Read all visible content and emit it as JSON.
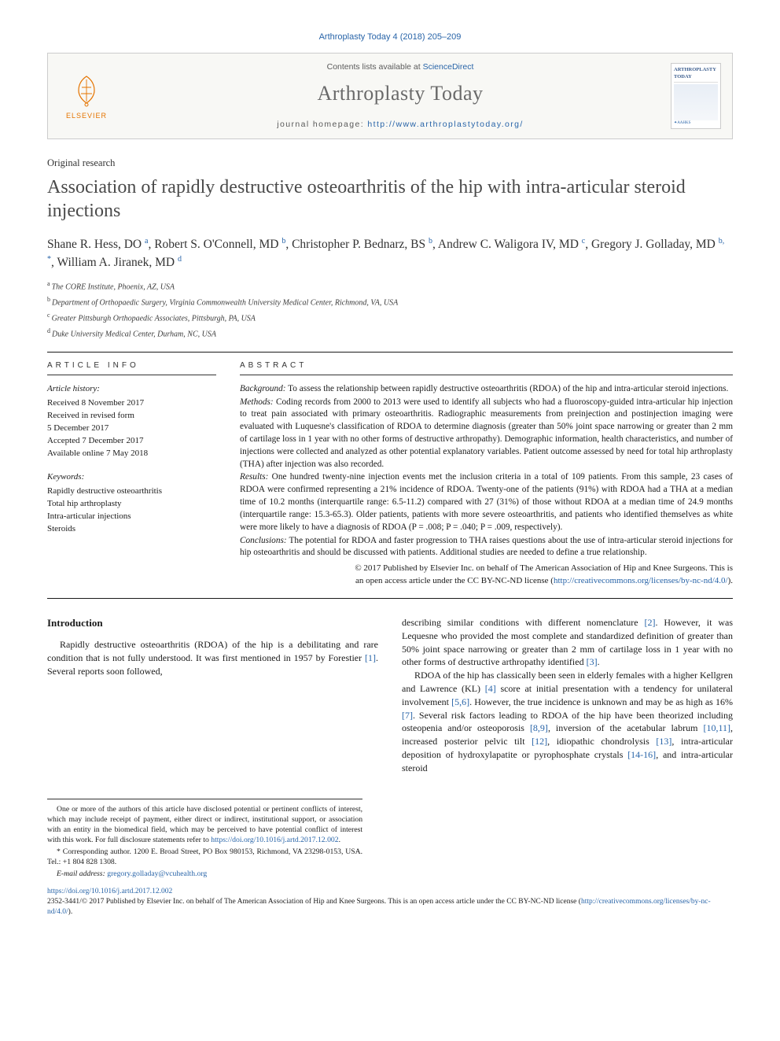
{
  "citation": "Arthroplasty Today 4 (2018) 205–209",
  "header": {
    "contents_prefix": "Contents lists available at ",
    "contents_link": "ScienceDirect",
    "journal": "Arthroplasty Today",
    "homepage_prefix": "journal homepage: ",
    "homepage_url": "http://www.arthroplastytoday.org/",
    "elsevier": "ELSEVIER",
    "cover_title": "ARTHROPLASTY TODAY",
    "cover_footer": "✦AAHKS"
  },
  "article": {
    "type": "Original research",
    "title": "Association of rapidly destructive osteoarthritis of the hip with intra-articular steroid injections",
    "authors_html": [
      {
        "name": "Shane R. Hess, DO",
        "aff": "a",
        "sep": ", "
      },
      {
        "name": "Robert S. O'Connell, MD",
        "aff": "b",
        "sep": ", "
      },
      {
        "name": "Christopher P. Bednarz, BS",
        "aff": "b",
        "sep": ", "
      },
      {
        "name": "Andrew C. Waligora IV, MD",
        "aff": "c",
        "sep": ", "
      },
      {
        "name": "Gregory J. Golladay, MD",
        "aff": "b, *",
        "sep": ", "
      },
      {
        "name": "William A. Jiranek, MD",
        "aff": "d",
        "sep": ""
      }
    ],
    "affiliations": [
      {
        "key": "a",
        "text": "The CORE Institute, Phoenix, AZ, USA"
      },
      {
        "key": "b",
        "text": "Department of Orthopaedic Surgery, Virginia Commonwealth University Medical Center, Richmond, VA, USA"
      },
      {
        "key": "c",
        "text": "Greater Pittsburgh Orthopaedic Associates, Pittsburgh, PA, USA"
      },
      {
        "key": "d",
        "text": "Duke University Medical Center, Durham, NC, USA"
      }
    ]
  },
  "info": {
    "head": "article info",
    "history_label": "Article history:",
    "history": [
      "Received 8 November 2017",
      "Received in revised form",
      "5 December 2017",
      "Accepted 7 December 2017",
      "Available online 7 May 2018"
    ],
    "keywords_label": "Keywords:",
    "keywords": [
      "Rapidly destructive osteoarthritis",
      "Total hip arthroplasty",
      "Intra-articular injections",
      "Steroids"
    ]
  },
  "abstract": {
    "head": "abstract",
    "background_label": "Background:",
    "background": " To assess the relationship between rapidly destructive osteoarthritis (RDOA) of the hip and intra-articular steroid injections.",
    "methods_label": "Methods:",
    "methods": " Coding records from 2000 to 2013 were used to identify all subjects who had a fluoroscopy-guided intra-articular hip injection to treat pain associated with primary osteoarthritis. Radiographic measurements from preinjection and postinjection imaging were evaluated with Luquesne's classification of RDOA to determine diagnosis (greater than 50% joint space narrowing or greater than 2 mm of cartilage loss in 1 year with no other forms of destructive arthropathy). Demographic information, health characteristics, and number of injections were collected and analyzed as other potential explanatory variables. Patient outcome assessed by need for total hip arthroplasty (THA) after injection was also recorded.",
    "results_label": "Results:",
    "results": " One hundred twenty-nine injection events met the inclusion criteria in a total of 109 patients. From this sample, 23 cases of RDOA were confirmed representing a 21% incidence of RDOA. Twenty-one of the patients (91%) with RDOA had a THA at a median time of 10.2 months (interquartile range: 6.5-11.2) compared with 27 (31%) of those without RDOA at a median time of 24.9 months (interquartile range: 15.3-65.3). Older patients, patients with more severe osteoarthritis, and patients who identified themselves as white were more likely to have a diagnosis of RDOA (P = .008; P = .040; P = .009, respectively).",
    "conclusions_label": "Conclusions:",
    "conclusions": " The potential for RDOA and faster progression to THA raises questions about the use of intra-articular steroid injections for hip osteoarthritis and should be discussed with patients. Additional studies are needed to define a true relationship.",
    "copyright1": "© 2017 Published by Elsevier Inc. on behalf of The American Association of Hip and Knee Surgeons. This is",
    "copyright2": "an open access article under the CC BY-NC-ND license (",
    "copyright_link": "http://creativecommons.org/licenses/by-nc-nd/4.0/",
    "copyright3": ")."
  },
  "body": {
    "intro_head": "Introduction",
    "left_p1a": "Rapidly destructive osteoarthritis (RDOA) of the hip is a debilitating and rare condition that is not fully understood. It was first mentioned in 1957 by Forestier ",
    "left_ref1": "[1]",
    "left_p1b": ". Several reports soon followed,",
    "right_p1a": "describing similar conditions with different nomenclature ",
    "right_ref2": "[2]",
    "right_p1b": ". However, it was Lequesne who provided the most complete and standardized definition of greater than 50% joint space narrowing or greater than 2 mm of cartilage loss in 1 year with no other forms of destructive arthropathy identified ",
    "right_ref3": "[3]",
    "right_p1c": ".",
    "right_p2a": "RDOA of the hip has classically been seen in elderly females with a higher Kellgren and Lawrence (KL) ",
    "right_ref4": "[4]",
    "right_p2b": " score at initial presentation with a tendency for unilateral involvement ",
    "right_ref56": "[5,6]",
    "right_p2c": ". However, the true incidence is unknown and may be as high as 16% ",
    "right_ref7": "[7]",
    "right_p2d": ". Several risk factors leading to RDOA of the hip have been theorized including osteopenia and/or osteoporosis ",
    "right_ref89": "[8,9]",
    "right_p2e": ", inversion of the acetabular labrum ",
    "right_ref1011": "[10,11]",
    "right_p2f": ", increased posterior pelvic tilt ",
    "right_ref12": "[12]",
    "right_p2g": ", idiopathic chondrolysis ",
    "right_ref13": "[13]",
    "right_p2h": ", intra-articular deposition of hydroxylapatite or pyrophosphate crystals ",
    "right_ref1416": "[14-16]",
    "right_p2i": ", and intra-articular steroid"
  },
  "footnotes": {
    "coi": "One or more of the authors of this article have disclosed potential or pertinent conflicts of interest, which may include receipt of payment, either direct or indirect, institutional support, or association with an entity in the biomedical field, which may be perceived to have potential conflict of interest with this work. For full disclosure statements refer to ",
    "coi_link": "https://doi.org/10.1016/j.artd.2017.12.002",
    "coi_end": ".",
    "corr_label": "* Corresponding author. ",
    "corr": "1200 E. Broad Street, PO Box 980153, Richmond, VA 23298-0153, USA. Tel.: +1 804 828 1308.",
    "email_label": "E-mail address: ",
    "email": "gregory.golladay@vcuhealth.org"
  },
  "footer": {
    "doi": "https://doi.org/10.1016/j.artd.2017.12.002",
    "line": "2352-3441/© 2017 Published by Elsevier Inc. on behalf of The American Association of Hip and Knee Surgeons. This is an open access article under the CC BY-NC-ND license (",
    "link": "http://creativecommons.org/licenses/by-nc-nd/4.0/",
    "line_end": ")."
  },
  "colors": {
    "link": "#2864a8",
    "elsevier": "#e57400",
    "text": "#1a1a1a",
    "gray": "#6a6a6a",
    "border": "#cccccc"
  }
}
